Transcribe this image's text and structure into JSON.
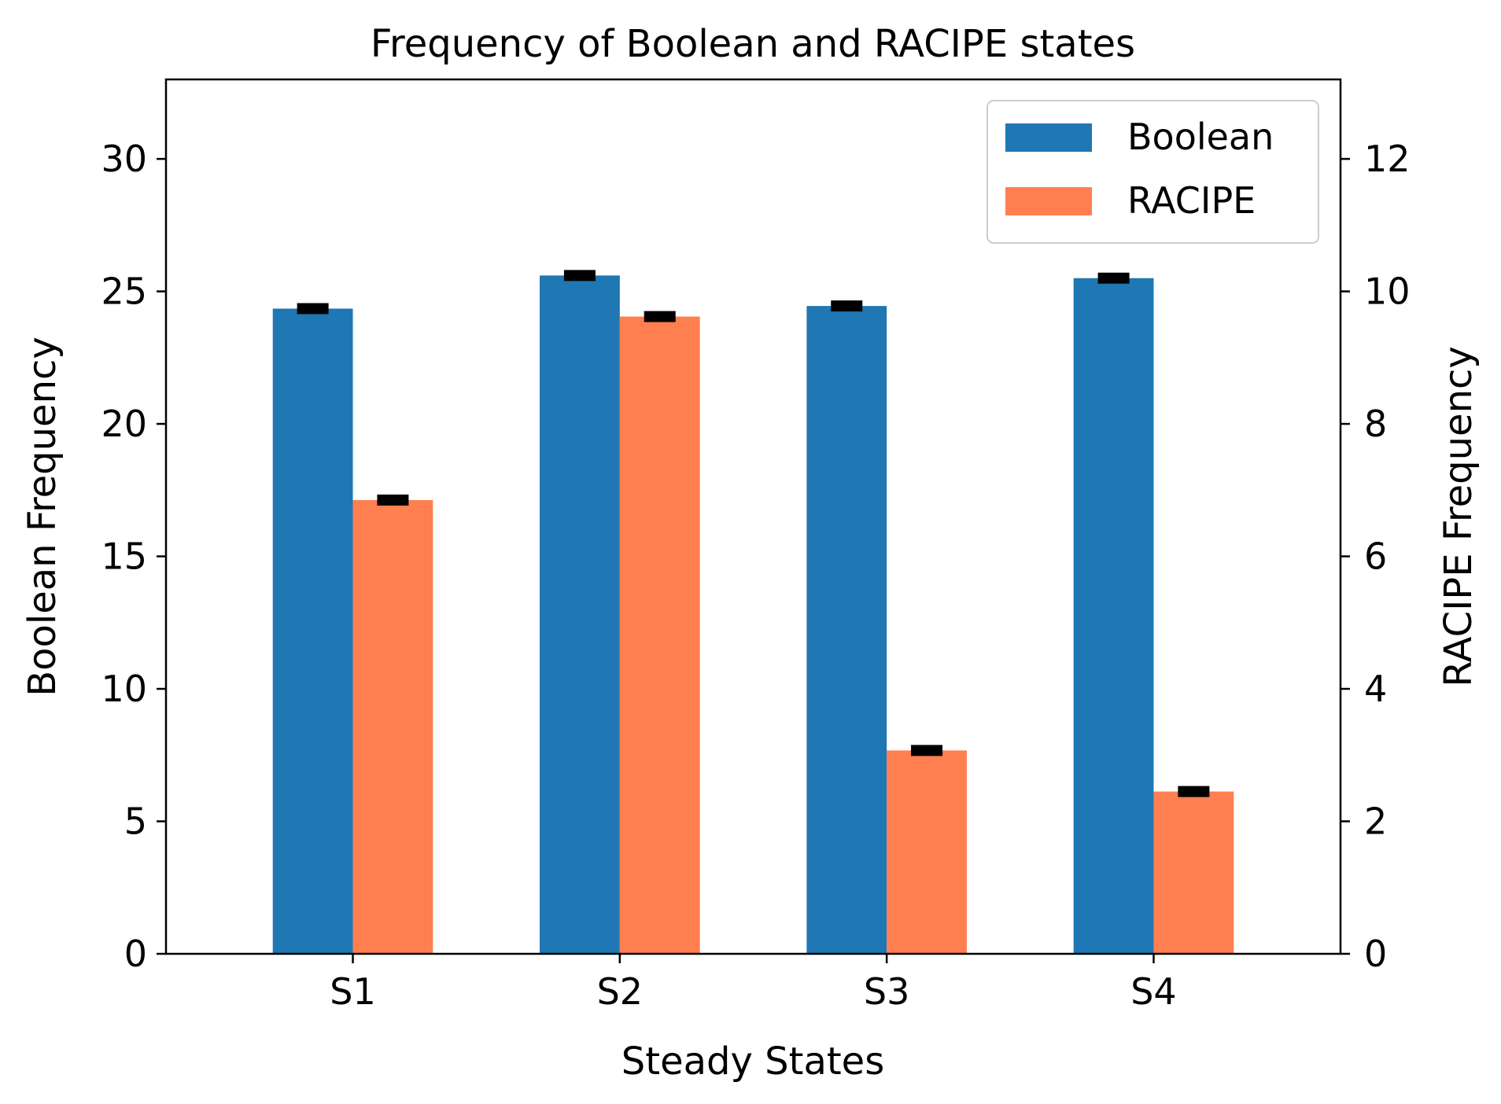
{
  "chart_data": {
    "type": "bar",
    "title": "Frequency of Boolean and RACIPE states",
    "xlabel": "Steady States",
    "ylabel_left": "Boolean Frequency",
    "ylabel_right": "RACIPE Frequency",
    "categories": [
      "S1",
      "S2",
      "S3",
      "S4"
    ],
    "ylim_left": [
      0,
      33
    ],
    "ylim_right": [
      0,
      13.2
    ],
    "yticks_left": [
      0,
      5,
      10,
      15,
      20,
      25,
      30
    ],
    "yticks_right": [
      0,
      2,
      4,
      6,
      8,
      10,
      12
    ],
    "grid": false,
    "legend_position": "top-right",
    "series": [
      {
        "name": "Boolean",
        "axis": "left",
        "color": "#1f77b4",
        "values": [
          24.35,
          25.6,
          24.45,
          25.5
        ],
        "errors": [
          0.15,
          0.1,
          0.15,
          0.12
        ]
      },
      {
        "name": "RACIPE",
        "axis": "right",
        "color": "#ff7f50",
        "values": [
          6.85,
          9.62,
          3.07,
          2.45
        ],
        "errors": [
          0.07,
          0.08,
          0.07,
          0.07
        ]
      }
    ],
    "errorbar_color": "#000000"
  }
}
